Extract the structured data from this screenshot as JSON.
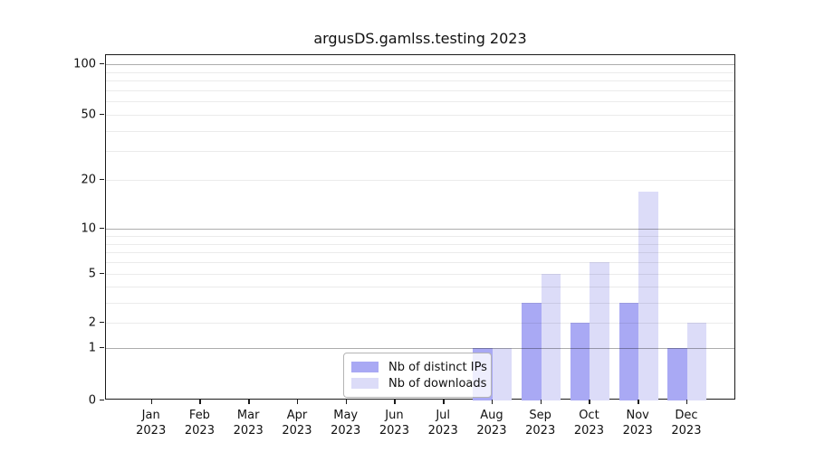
{
  "figure": {
    "title": "argusDS.gamlss.testing 2023"
  },
  "colors": {
    "distinct_ips": "#a9a9f4",
    "downloads": "#dcdcf8",
    "grid_minor": "rgba(0,0,0,0.08)",
    "grid_major": "rgba(0,0,0,0.32)",
    "spine": "#1a1a1a"
  },
  "legend": {
    "items": [
      {
        "label": "Nb of distinct IPs",
        "color": "#a9a9f4"
      },
      {
        "label": "Nb of downloads",
        "color": "#dcdcf8"
      }
    ]
  },
  "chart_data": {
    "type": "bar",
    "title": "argusDS.gamlss.testing 2023",
    "categories": [
      "Jan 2023",
      "Feb 2023",
      "Mar 2023",
      "Apr 2023",
      "May 2023",
      "Jun 2023",
      "Jul 2023",
      "Aug 2023",
      "Sep 2023",
      "Oct 2023",
      "Nov 2023",
      "Dec 2023"
    ],
    "series": [
      {
        "name": "Nb of distinct IPs",
        "color": "#a9a9f4",
        "values": [
          0,
          0,
          0,
          0,
          0,
          0,
          0,
          1,
          3,
          2,
          3,
          1
        ]
      },
      {
        "name": "Nb of downloads",
        "color": "#dcdcf8",
        "values": [
          0,
          0,
          0,
          0,
          0,
          0,
          0,
          1,
          5,
          6,
          17,
          2
        ]
      }
    ],
    "xlabel": "",
    "ylabel": "",
    "yscale": "log1p",
    "ylim": [
      0,
      113
    ],
    "yticks": [
      0,
      1,
      2,
      5,
      10,
      20,
      50,
      100
    ],
    "minor_gridlines": [
      2,
      3,
      4,
      5,
      6,
      7,
      8,
      9,
      20,
      30,
      40,
      50,
      60,
      70,
      80,
      90
    ],
    "major_gridlines": [
      1,
      10,
      100
    ],
    "grid": true,
    "legend_position": "lower center"
  }
}
